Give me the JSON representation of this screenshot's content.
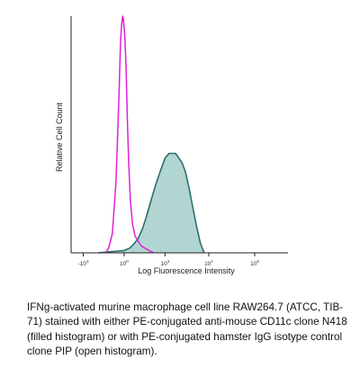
{
  "chart_data": {
    "type": "area",
    "title": "",
    "xlabel": "Log Fluorescence Intensity",
    "ylabel": "Relative Cell Count",
    "x_scale": "log",
    "xlim": [
      -1500,
      1000000
    ],
    "ylim": [
      0,
      100
    ],
    "grid": false,
    "x_ticks": [
      {
        "value": -1000,
        "base": "-10",
        "exp": "3"
      },
      {
        "value": 0,
        "base": "10",
        "exp": "0"
      },
      {
        "value": 1000,
        "base": "10",
        "exp": "3"
      },
      {
        "value": 10000,
        "base": "10",
        "exp": "4"
      },
      {
        "value": 100000,
        "base": "10",
        "exp": "5"
      }
    ],
    "series": [
      {
        "color": "#2a6e6a",
        "fill": "#a8d2cc",
        "filled": true,
        "points": [
          [
            -400,
            0
          ],
          [
            0,
            1
          ],
          [
            50,
            2
          ],
          [
            100,
            4
          ],
          [
            150,
            6
          ],
          [
            220,
            10
          ],
          [
            300,
            15
          ],
          [
            420,
            22
          ],
          [
            580,
            29
          ],
          [
            780,
            35
          ],
          [
            1000,
            40
          ],
          [
            1250,
            42
          ],
          [
            1500,
            42
          ],
          [
            1800,
            42
          ],
          [
            2150,
            40
          ],
          [
            2550,
            38
          ],
          [
            3050,
            34
          ],
          [
            3700,
            27
          ],
          [
            4450,
            19
          ],
          [
            5400,
            11
          ],
          [
            6550,
            4
          ],
          [
            7900,
            0
          ]
        ]
      },
      {
        "color": "#e020d8",
        "fill": "none",
        "filled": false,
        "points": [
          [
            -230,
            0
          ],
          [
            -175,
            2
          ],
          [
            -120,
            8
          ],
          [
            -75,
            30
          ],
          [
            -45,
            65
          ],
          [
            -30,
            89
          ],
          [
            -20,
            96
          ],
          [
            -12,
            100
          ],
          [
            -6,
            99
          ],
          [
            0,
            95
          ],
          [
            6,
            91
          ],
          [
            15,
            78
          ],
          [
            25,
            58
          ],
          [
            38,
            38
          ],
          [
            55,
            22
          ],
          [
            78,
            12
          ],
          [
            110,
            7
          ],
          [
            150,
            5
          ],
          [
            200,
            3
          ],
          [
            270,
            2
          ],
          [
            370,
            1
          ],
          [
            500,
            0
          ]
        ]
      }
    ]
  },
  "caption": "IFNg-activated murine macrophage cell line RAW264.7 (ATCC, TIB-71) stained with either PE-conjugated anti-mouse CD11c clone N418 (filled histogram) or with PE-conjugated hamster IgG isotype control clone PIP (open histogram)."
}
